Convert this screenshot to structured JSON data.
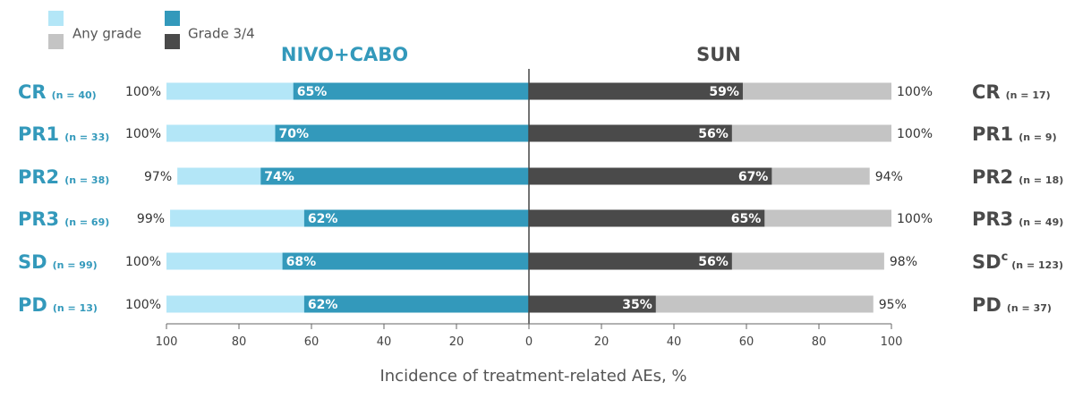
{
  "chart_data": {
    "type": "bar",
    "orientation": "horizontal-butterfly",
    "legend": {
      "placement": "top-left",
      "items": [
        {
          "label": "Any grade",
          "colors": [
            "#b3e6f7",
            "#c4c4c4"
          ]
        },
        {
          "label": "Grade 3/4",
          "colors": [
            "#3399bb",
            "#4a4a4a"
          ]
        }
      ]
    },
    "xlabel": "Incidence of treatment-related AEs, %",
    "xlim": [
      0,
      100
    ],
    "xticks": [
      100,
      80,
      60,
      40,
      20,
      0,
      20,
      40,
      60,
      80,
      100
    ],
    "categories": [
      "CR",
      "PR1",
      "PR2",
      "PR3",
      "SD",
      "PD"
    ],
    "panels": [
      {
        "title": "NIVO+CABO",
        "side": "left",
        "color": "#3399bb",
        "title_color": "#3399bb",
        "n_labels": [
          "(n = 40)",
          "(n = 33)",
          "(n = 38)",
          "(n = 69)",
          "(n = 99)",
          "(n = 13)"
        ],
        "cat_labels": [
          "CR",
          "PR1",
          "PR2",
          "PR3",
          "SD",
          "PD"
        ],
        "series": [
          {
            "name": "Any grade",
            "values": [
              100,
              100,
              97,
              99,
              100,
              100
            ],
            "color": "#b3e6f7",
            "labels": [
              "100%",
              "100%",
              "97%",
              "99%",
              "100%",
              "100%"
            ]
          },
          {
            "name": "Grade 3/4",
            "values": [
              65,
              70,
              74,
              62,
              68,
              62
            ],
            "color": "#3399bb",
            "labels": [
              "65%",
              "70%",
              "74%",
              "62%",
              "68%",
              "62%"
            ]
          }
        ]
      },
      {
        "title": "SUN",
        "side": "right",
        "color": "#4a4a4a",
        "title_color": "#4a4a4a",
        "n_labels": [
          "(n = 17)",
          "(n = 9)",
          "(n = 18)",
          "(n = 49)",
          "(n = 123)",
          "(n = 37)"
        ],
        "cat_labels": [
          "CR",
          "PR1",
          "PR2",
          "PR3",
          "SD",
          "PD"
        ],
        "cat_superscripts": [
          "",
          "",
          "",
          "",
          "c",
          ""
        ],
        "series": [
          {
            "name": "Any grade",
            "values": [
              100,
              100,
              94,
              100,
              98,
              95
            ],
            "color": "#c4c4c4",
            "labels": [
              "100%",
              "100%",
              "94%",
              "100%",
              "98%",
              "95%"
            ]
          },
          {
            "name": "Grade 3/4",
            "values": [
              59,
              56,
              67,
              65,
              56,
              35
            ],
            "color": "#4a4a4a",
            "labels": [
              "59%",
              "56%",
              "67%",
              "65%",
              "56%",
              "35%"
            ]
          }
        ]
      }
    ]
  }
}
